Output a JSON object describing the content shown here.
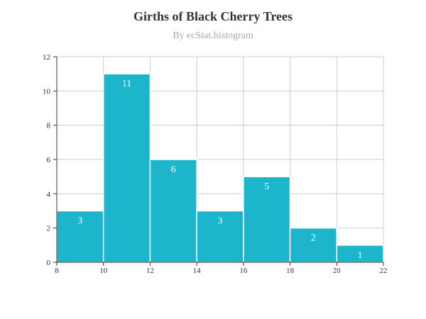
{
  "chart_data": {
    "type": "bar",
    "title": "Girths of Black Cherry Trees",
    "subtitle": "By ecStat.histogram",
    "xlabel": "",
    "ylabel": "",
    "bins": [
      {
        "x0": 8,
        "x1": 10,
        "value": 3
      },
      {
        "x0": 10,
        "x1": 12,
        "value": 11
      },
      {
        "x0": 12,
        "x1": 14,
        "value": 6
      },
      {
        "x0": 14,
        "x1": 16,
        "value": 3
      },
      {
        "x0": 16,
        "x1": 18,
        "value": 5
      },
      {
        "x0": 18,
        "x1": 20,
        "value": 2
      },
      {
        "x0": 20,
        "x1": 22,
        "value": 1
      }
    ],
    "xlim": [
      8,
      22
    ],
    "ylim": [
      0,
      12
    ],
    "x_ticks": [
      "8",
      "10",
      "12",
      "14",
      "16",
      "18",
      "20",
      "22"
    ],
    "y_ticks": [
      "0",
      "2",
      "4",
      "6",
      "8",
      "10",
      "12"
    ],
    "grid": true,
    "legend": "none",
    "colors": {
      "bar": "#1cb5cc",
      "bar_border": "#ffffff",
      "grid": "#cccccc",
      "axis": "#333333",
      "title": "#333333",
      "subtitle": "#aaaaaa",
      "label": "#ffffff"
    }
  }
}
